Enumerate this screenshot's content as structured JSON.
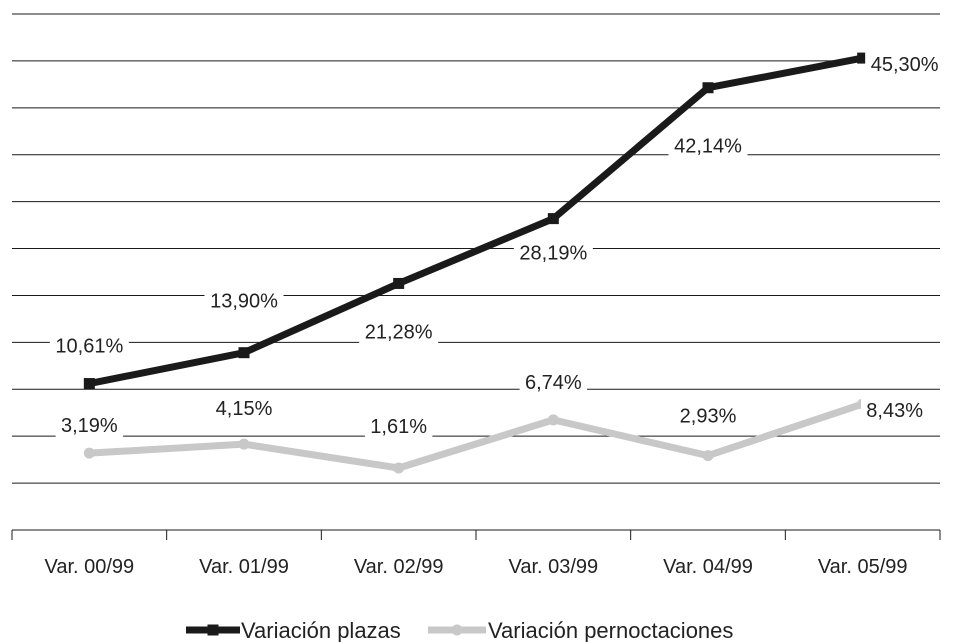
{
  "chart_data": {
    "type": "line",
    "categories": [
      "Var. 00/99",
      "Var. 01/99",
      "Var. 02/99",
      "Var. 03/99",
      "Var. 04/99",
      "Var. 05/99"
    ],
    "series": [
      {
        "name": "Variación plazas",
        "values": [
          10.61,
          13.9,
          21.28,
          28.19,
          42.14,
          45.3
        ],
        "labels": [
          "10,61%",
          "13,90%",
          "21,28%",
          "28,19%",
          "42,14%",
          "45,30%"
        ],
        "color": "#1a1a1a",
        "marker": "square"
      },
      {
        "name": "Variación pernoctaciones",
        "values": [
          3.19,
          4.15,
          1.61,
          6.74,
          2.93,
          8.43
        ],
        "labels": [
          "3,19%",
          "4,15%",
          "1,61%",
          "6,74%",
          "2,93%",
          "8,43%"
        ],
        "color": "#c8c8c8",
        "marker": "circle"
      }
    ],
    "ylim": [
      -5,
      50
    ],
    "grid": true,
    "legend_position": "bottom"
  }
}
